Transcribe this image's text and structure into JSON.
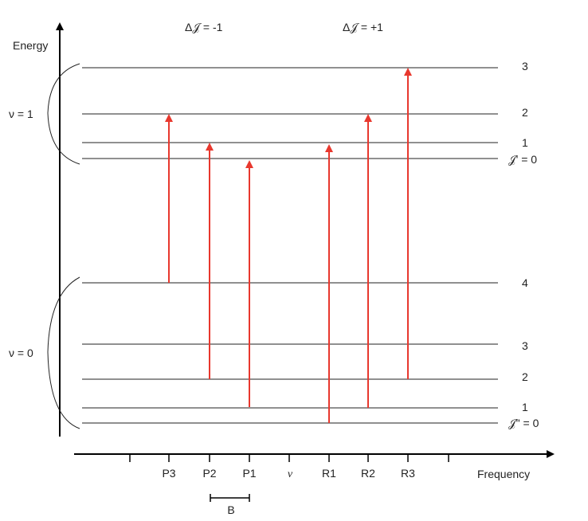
{
  "y_axis_label": "Energy",
  "x_axis_label": "Frequency",
  "delta_labels": {
    "minus": "Δ𝒥 = -1",
    "plus": "Δ𝒥 = +1"
  },
  "vibrational_states": {
    "upper": "ν = 1",
    "lower": "ν = 0"
  },
  "upper_levels": {
    "j3": "3",
    "j2": "2",
    "j1": "1",
    "j0": "𝒥' = 0"
  },
  "lower_levels": {
    "j4": "4",
    "j3": "3",
    "j2": "2",
    "j1": "1",
    "j0": "𝒥\" = 0"
  },
  "frequency_ticks": {
    "p3": "P3",
    "p2": "P2",
    "p1": "P1",
    "nu": "ν",
    "r1": "R1",
    "r2": "R2",
    "r3": "R3"
  },
  "spacing_label": "B",
  "colors": {
    "arrow": "#e8382e",
    "axis": "#000000",
    "level": "#222222"
  }
}
